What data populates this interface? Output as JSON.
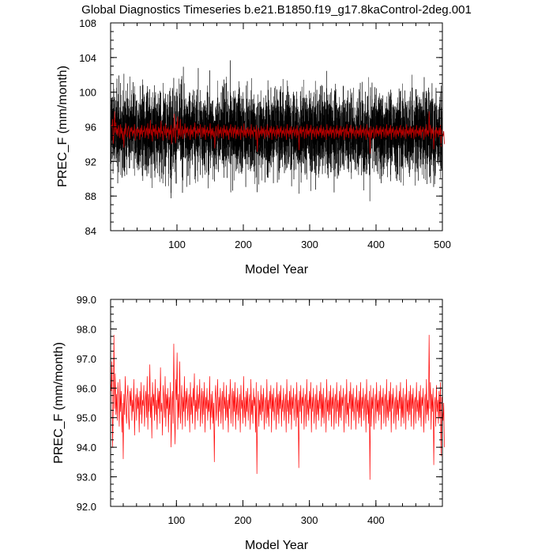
{
  "figure": {
    "title": "Global Diagnostics Timeseries b.e21.B1850.f19_g17.8kaControl-2deg.001"
  },
  "colors": {
    "monthly_series": "#000000",
    "annual_series": "#ff0000",
    "annual_series_overlay": "#c00000",
    "axes": "#000000",
    "background": "#ffffff"
  },
  "chart_data": [
    {
      "type": "line",
      "title": "Global Diagnostics Timeseries b.e21.B1850.f19_g17.8kaControl-2deg.001",
      "xlabel": "Model Year",
      "ylabel": "PREC_F (mm/month)",
      "xlim": [
        0,
        500
      ],
      "ylim": [
        84,
        108
      ],
      "xticks": [
        100,
        200,
        300,
        400,
        500
      ],
      "yticks": [
        84,
        88,
        92,
        96,
        100,
        104,
        108
      ],
      "ytick_labels": [
        "84",
        "88",
        "92",
        "96",
        "100",
        "104",
        "108"
      ],
      "grid": false,
      "legend": "none",
      "series": [
        {
          "kind": "monthly",
          "color": "#000000",
          "points": 6000,
          "mean": 95.3,
          "typical_min": 89.5,
          "typical_max": 101.5,
          "extreme_min": 86.2,
          "extreme_max": 105.6
        },
        {
          "kind": "annual",
          "color": "#c00000",
          "ref": "annual_mean"
        }
      ]
    },
    {
      "type": "line",
      "xlabel": "Model Year",
      "ylabel": "PREC_F (mm/month)",
      "xlim": [
        1,
        500
      ],
      "ylim": [
        92.0,
        99.0
      ],
      "xticks": [
        100,
        200,
        300,
        400
      ],
      "yticks": [
        92.0,
        93.0,
        94.0,
        95.0,
        96.0,
        97.0,
        98.0,
        99.0
      ],
      "ytick_labels": [
        "92.0",
        "93.0",
        "94.0",
        "95.0",
        "96.0",
        "97.0",
        "98.0",
        "99.0"
      ],
      "grid": false,
      "legend": "none",
      "series": [
        {
          "kind": "annual",
          "color": "#ff0000",
          "ref": "annual_mean"
        }
      ]
    }
  ],
  "annual_mean": {
    "x_start": 1,
    "x_step": 1,
    "values": [
      96.2,
      95.9,
      96.9,
      94.0,
      95.4,
      97.8,
      95.3,
      96.5,
      95.1,
      95.8,
      94.9,
      96.2,
      95.6,
      94.7,
      96.3,
      95.2,
      95.9,
      94.5,
      95.5,
      93.6,
      95.8,
      95.1,
      96.4,
      95.3,
      94.8,
      95.7,
      96.1,
      95.0,
      94.6,
      95.9,
      95.4,
      96.0,
      94.9,
      95.6,
      95.2,
      96.3,
      94.4,
      95.5,
      95.8,
      94.9,
      96.0,
      95.3,
      95.7,
      94.5,
      95.9,
      95.1,
      96.2,
      94.8,
      95.6,
      95.4,
      96.1,
      94.7,
      95.5,
      95.9,
      95.0,
      96.4,
      94.6,
      95.8,
      95.2,
      96.8,
      95.0,
      95.7,
      94.3,
      96.2,
      95.4,
      95.8,
      94.9,
      96.3,
      95.1,
      95.6,
      94.6,
      96.0,
      95.3,
      95.9,
      94.8,
      96.7,
      95.2,
      95.5,
      94.4,
      96.1,
      95.6,
      95.0,
      96.4,
      94.7,
      95.8,
      95.3,
      96.0,
      94.5,
      95.7,
      95.1,
      96.2,
      94.0,
      95.5,
      95.9,
      94.8,
      97.5,
      95.2,
      94.1,
      96.3,
      95.6,
      97.2,
      94.6,
      95.8,
      95.0,
      96.9,
      94.8,
      95.4,
      96.1,
      94.6,
      95.7,
      95.2,
      96.4,
      94.7,
      95.9,
      95.3,
      96.0,
      94.9,
      95.5,
      95.8,
      94.5,
      96.2,
      95.1,
      95.7,
      94.8,
      96.0,
      95.4,
      96.5,
      94.6,
      95.6,
      95.2,
      96.1,
      94.9,
      95.8,
      95.3,
      96.3,
      94.7,
      95.5,
      96.0,
      94.8,
      95.9,
      95.1,
      96.2,
      94.5,
      95.7,
      95.3,
      96.0,
      94.9,
      95.6,
      95.2,
      96.4,
      94.6,
      95.8,
      95.0,
      95.9,
      94.8,
      95.5,
      93.5,
      95.6,
      96.1,
      94.9,
      95.4,
      96.3,
      94.7,
      95.7,
      95.2,
      96.0,
      94.8,
      95.5,
      95.9,
      94.6,
      96.2,
      95.3,
      95.7,
      94.9,
      96.1,
      95.0,
      95.6,
      94.5,
      95.8,
      95.3,
      96.3,
      94.8,
      95.5,
      96.0,
      94.7,
      95.9,
      95.2,
      96.2,
      94.6,
      95.7,
      95.1,
      96.0,
      94.9,
      95.4,
      95.8,
      94.5,
      96.1,
      95.3,
      95.6,
      94.8,
      96.4,
      95.0,
      95.7,
      94.7,
      95.9,
      95.2,
      96.0,
      94.9,
      95.5,
      95.8,
      94.6,
      96.3,
      95.1,
      95.6,
      94.8,
      96.0,
      95.4,
      95.7,
      94.5,
      96.2,
      93.1,
      95.3,
      95.9,
      94.7,
      95.6,
      95.1,
      96.1,
      94.9,
      95.8,
      95.2,
      96.0,
      94.6,
      95.5,
      95.7,
      94.8,
      96.3,
      95.0,
      95.6,
      94.7,
      95.9,
      95.3,
      96.1,
      94.5,
      95.8,
      95.2,
      96.0,
      94.9,
      95.5,
      95.7,
      94.6,
      96.2,
      95.1,
      95.8,
      94.8,
      95.9,
      95.3,
      96.1,
      94.7,
      95.6,
      95.2,
      96.0,
      94.9,
      95.4,
      95.8,
      94.5,
      96.3,
      95.2,
      95.6,
      94.8,
      95.9,
      95.1,
      96.1,
      94.6,
      95.7,
      95.3,
      96.0,
      94.9,
      95.5,
      95.8,
      94.7,
      96.2,
      95.0,
      95.6,
      93.3,
      95.9,
      95.2,
      96.1,
      94.8,
      95.7,
      95.4,
      96.0,
      94.6,
      95.5,
      95.8,
      94.7,
      96.3,
      95.1,
      95.6,
      94.9,
      95.9,
      95.3,
      96.2,
      94.5,
      95.7,
      95.2,
      96.0,
      94.8,
      95.4,
      95.8,
      94.6,
      96.1,
      95.1,
      95.6,
      94.9,
      95.9,
      95.3,
      96.2,
      94.7,
      95.8,
      95.0,
      96.0,
      94.8,
      95.5,
      95.7,
      94.5,
      96.3,
      95.2,
      95.6,
      94.9,
      95.9,
      95.1,
      96.1,
      94.7,
      95.7,
      95.3,
      96.0,
      94.6,
      95.5,
      95.8,
      94.8,
      96.2,
      95.2,
      95.6,
      94.7,
      95.9,
      95.0,
      96.1,
      94.9,
      95.7,
      95.4,
      96.0,
      94.5,
      95.6,
      95.8,
      94.8,
      96.3,
      95.1,
      95.5,
      94.7,
      95.9,
      95.3,
      96.2,
      94.6,
      95.8,
      95.2,
      96.0,
      94.9,
      95.4,
      95.7,
      94.6,
      96.1,
      95.2,
      95.6,
      94.8,
      95.9,
      95.0,
      96.2,
      94.7,
      95.7,
      95.3,
      96.0,
      94.9,
      95.5,
      95.8,
      94.5,
      96.3,
      95.1,
      95.6,
      94.8,
      95.9,
      92.9,
      96.1,
      94.7,
      95.7,
      95.3,
      96.0,
      94.6,
      95.5,
      95.8,
      94.8,
      96.2,
      95.2,
      95.6,
      94.9,
      95.9,
      95.1,
      96.1,
      94.6,
      95.7,
      95.4,
      96.0,
      94.8,
      95.5,
      95.8,
      94.7,
      96.3,
      95.0,
      95.6,
      94.9,
      95.9,
      95.2,
      96.2,
      94.5,
      95.8,
      95.3,
      96.0,
      94.8,
      95.4,
      95.7,
      94.6,
      96.1,
      95.1,
      95.6,
      94.9,
      95.9,
      95.3,
      96.2,
      94.7,
      95.7,
      95.0,
      96.0,
      94.8,
      95.5,
      95.8,
      94.6,
      96.3,
      95.2,
      95.6,
      94.9,
      95.9,
      95.1,
      96.1,
      94.7,
      95.8,
      95.3,
      96.0,
      94.6,
      95.5,
      95.7,
      94.8,
      96.2,
      95.2,
      95.6,
      94.9,
      95.9,
      95.0,
      96.1,
      94.7,
      95.7,
      95.4,
      96.0,
      94.5,
      95.5,
      95.8,
      94.8,
      96.3,
      95.1,
      95.6,
      94.9,
      97.8,
      95.3,
      96.2,
      94.6,
      95.8,
      95.2,
      96.0,
      93.4,
      95.4,
      95.7,
      94.7,
      96.1,
      95.2,
      95.6,
      94.8,
      95.9,
      95.0,
      96.2,
      93.7,
      95.7,
      95.3,
      94.9,
      95.5,
      94.0
    ]
  }
}
